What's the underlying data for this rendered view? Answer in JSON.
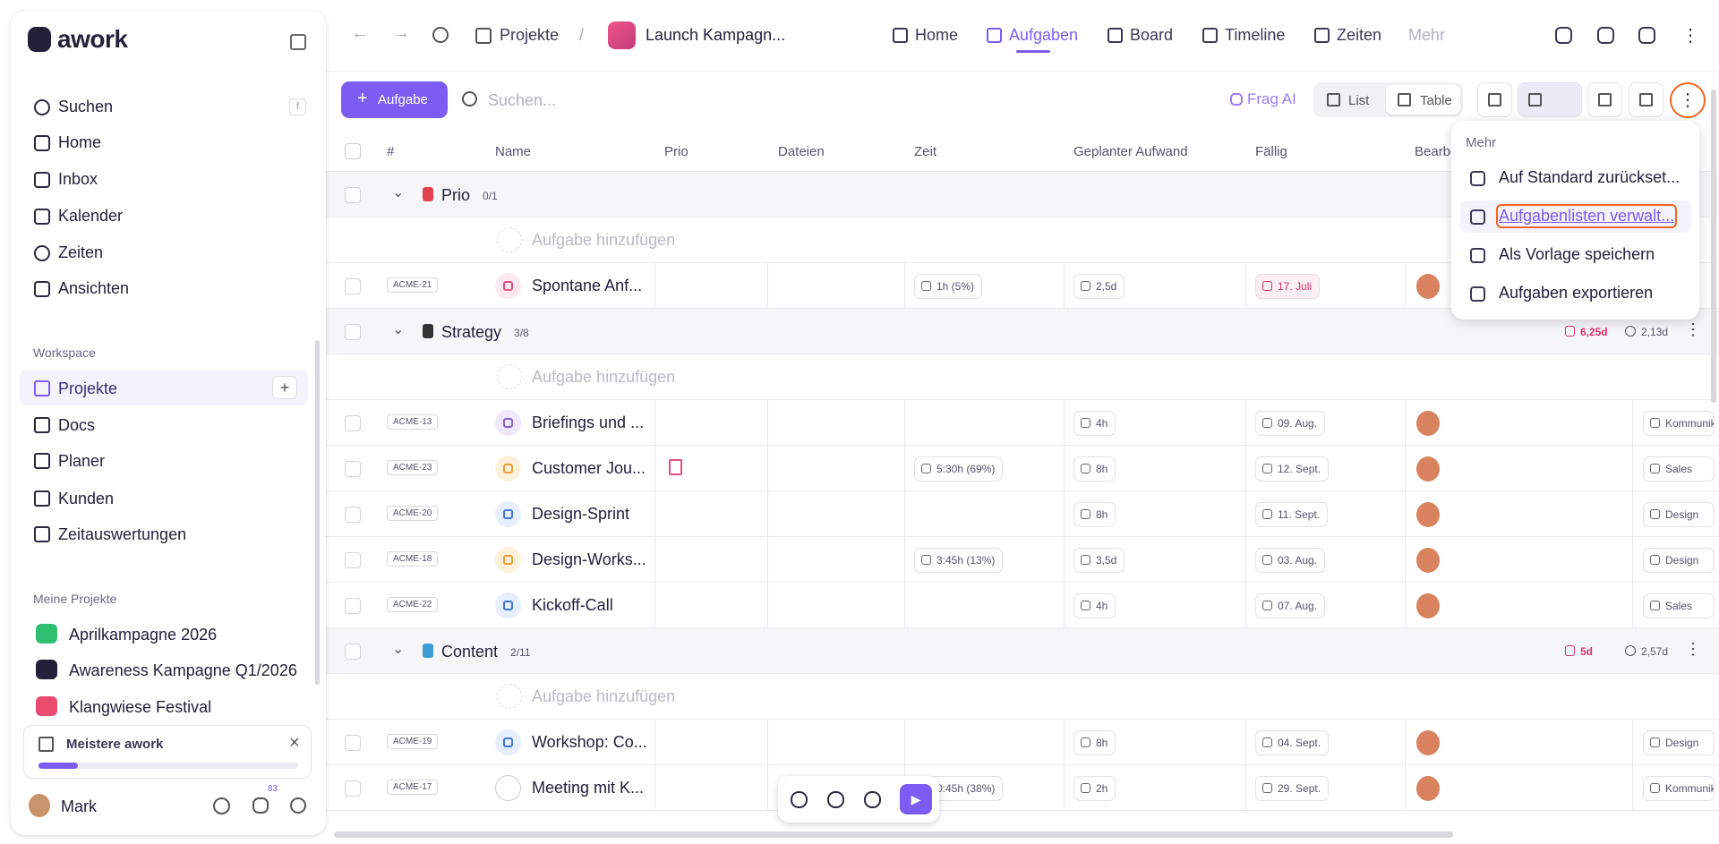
{
  "sidebar": {
    "logo": "awork",
    "search_shortcut": "f",
    "nav": [
      "Suchen",
      "Home",
      "Inbox",
      "Kalender",
      "Zeiten",
      "Ansichten"
    ],
    "workspace_label": "Workspace",
    "workspace": [
      "Projekte",
      "Docs",
      "Planer",
      "Kunden",
      "Zeitauswertungen"
    ],
    "active_index": 0,
    "my_projects_label": "Meine Projekte",
    "projects": [
      "Aprilkampagne 2026",
      "Awareness Kampagne Q1/2026",
      "Klangwiese Festival"
    ],
    "onboarding": "Meistere awork",
    "user": "Mark",
    "notifications": "83"
  },
  "topbar": {
    "breadcrumb": "Projekte",
    "separator": "/",
    "project": "Launch Kampagn...",
    "tabs": [
      "Home",
      "Aufgaben",
      "Board",
      "Timeline",
      "Zeiten",
      "Mehr"
    ],
    "active_tab": 1
  },
  "toolbar": {
    "add": "Aufgabe",
    "search_placeholder": "Suchen...",
    "ai": "Frag AI",
    "views": [
      "List",
      "Table"
    ]
  },
  "table": {
    "columns": [
      "#",
      "Name",
      "Prio",
      "Dateien",
      "Zeit",
      "Geplanter Aufwand",
      "Fällig",
      "Bearbeiter"
    ],
    "add_task": "Aufgabe hinzufügen",
    "groups": [
      {
        "name": "Prio",
        "progress": "0/1",
        "icon_color": "#e0434f",
        "tasks": [
          {
            "id": "ACME-21",
            "name": "Spontane Anf...",
            "status": "flag",
            "time": "1h (5%)",
            "effort": "2,5d",
            "due": "17. Juli",
            "due_color": "#d6336c"
          }
        ]
      },
      {
        "name": "Strategy",
        "progress": "3/8",
        "icon_color": "#333",
        "effort_total": "6,25d",
        "time_total": "2,13d",
        "tasks": [
          {
            "id": "ACME-13",
            "name": "Briefings und ...",
            "status": "question",
            "effort": "4h",
            "due": "09. Aug.",
            "tag": "Kommunikation"
          },
          {
            "id": "ACME-23",
            "name": "Customer Jou...",
            "status": "arrow",
            "prio": true,
            "time": "5:30h (69%)",
            "effort": "8h",
            "due": "12. Sept.",
            "tag": "Sales"
          },
          {
            "id": "ACME-20",
            "name": "Design-Sprint",
            "status": "flame",
            "effort": "8h",
            "due": "11. Sept.",
            "tag": "Design"
          },
          {
            "id": "ACME-18",
            "name": "Design-Works...",
            "status": "arrow",
            "time": "3:45h (13%)",
            "effort": "3,5d",
            "due": "03. Aug.",
            "tag": "Design"
          },
          {
            "id": "ACME-22",
            "name": "Kickoff-Call",
            "status": "flame",
            "effort": "4h",
            "due": "07. Aug.",
            "tag": "Sales"
          }
        ]
      },
      {
        "name": "Content",
        "progress": "2/11",
        "icon_color": "#3a9bd5",
        "effort_total": "5d",
        "time_total": "2,57d",
        "tasks": [
          {
            "id": "ACME-19",
            "name": "Workshop: Co...",
            "status": "flame",
            "effort": "8h",
            "due": "04. Sept.",
            "tag": "Design"
          },
          {
            "id": "ACME-17",
            "name": "Meeting mit K...",
            "status": "empty",
            "time": "0:45h (38%)",
            "effort": "2h",
            "due": "29. Sept.",
            "tag": "Kommunikation"
          }
        ]
      }
    ]
  },
  "menu": {
    "title": "Mehr",
    "items": [
      "Auf Standard zurückset...",
      "Aufgabenlisten verwalt...",
      "Als Vorlage speichern",
      "Aufgaben exportieren"
    ],
    "highlighted": 1
  }
}
